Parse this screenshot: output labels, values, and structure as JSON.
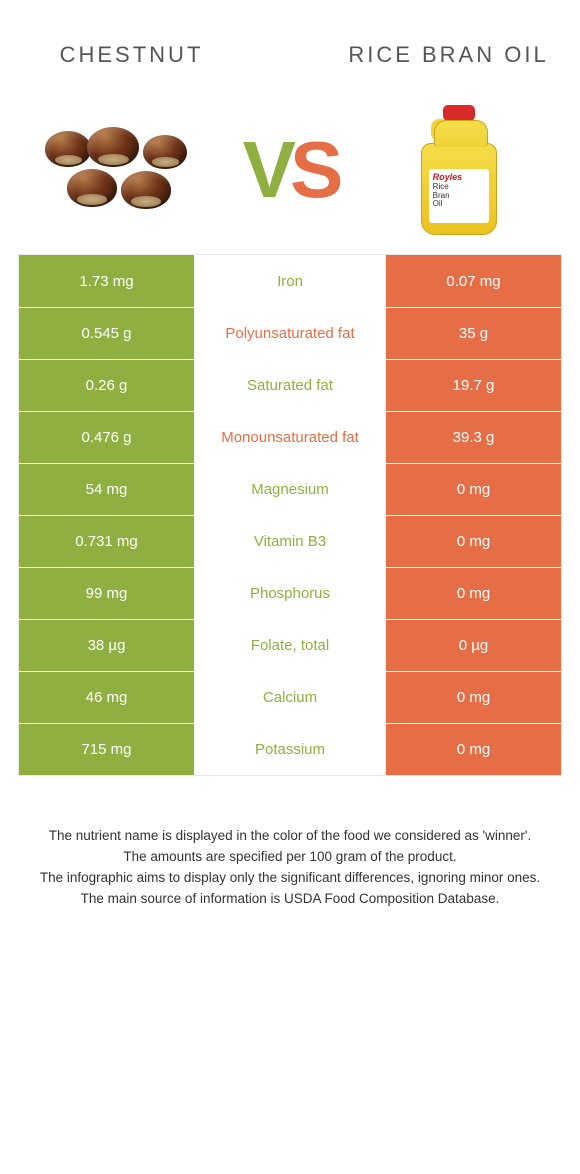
{
  "colors": {
    "left": "#8fb040",
    "right": "#e56e46",
    "background": "#ffffff"
  },
  "left": {
    "title": "CHESTNUT"
  },
  "right": {
    "title": "RICE BRAN OIL"
  },
  "vs": {
    "v": "V",
    "s": "S"
  },
  "bottle": {
    "brand": "Royles",
    "line1": "Rice",
    "line2": "Bran",
    "line3": "Oil"
  },
  "rows": [
    {
      "left": "1.73 mg",
      "label": "Iron",
      "right": "0.07 mg",
      "winner": "left"
    },
    {
      "left": "0.545 g",
      "label": "Polyunsaturated fat",
      "right": "35 g",
      "winner": "right"
    },
    {
      "left": "0.26 g",
      "label": "Saturated fat",
      "right": "19.7 g",
      "winner": "left"
    },
    {
      "left": "0.476 g",
      "label": "Monounsaturated fat",
      "right": "39.3 g",
      "winner": "right"
    },
    {
      "left": "54 mg",
      "label": "Magnesium",
      "right": "0 mg",
      "winner": "left"
    },
    {
      "left": "0.731 mg",
      "label": "Vitamin B3",
      "right": "0 mg",
      "winner": "left"
    },
    {
      "left": "99 mg",
      "label": "Phosphorus",
      "right": "0 mg",
      "winner": "left"
    },
    {
      "left": "38 µg",
      "label": "Folate, total",
      "right": "0 µg",
      "winner": "left"
    },
    {
      "left": "46 mg",
      "label": "Calcium",
      "right": "0 mg",
      "winner": "left"
    },
    {
      "left": "715 mg",
      "label": "Potassium",
      "right": "0 mg",
      "winner": "left"
    }
  ],
  "notes": [
    "The nutrient name is displayed in the color of the food we considered as 'winner'.",
    "The amounts are specified per 100 gram of the product.",
    "The infographic aims to display only the significant differences, ignoring minor ones.",
    "The main source of information is USDA Food Composition Database."
  ]
}
